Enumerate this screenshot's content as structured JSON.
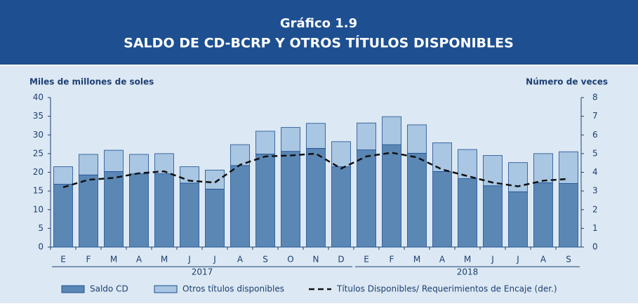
{
  "chart_data": {
    "type": "bar",
    "title": "Gráfico 1.9",
    "subtitle": "SALDO DE CD-BCRP Y OTROS TÍTULOS DISPONIBLES",
    "y_label": "Miles de millones de soles",
    "y2_label": "Número de veces",
    "categories": [
      "E",
      "F",
      "M",
      "A",
      "M",
      "J",
      "J",
      "A",
      "S",
      "O",
      "N",
      "D",
      "E",
      "F",
      "M",
      "A",
      "M",
      "J",
      "J",
      "A",
      "S"
    ],
    "year_groups": [
      {
        "label": "2017",
        "count": 12
      },
      {
        "label": "2018",
        "count": 9
      }
    ],
    "series": [
      {
        "name": "Saldo CD",
        "color": "#5b87b5",
        "values": [
          16.8,
          19.3,
          20.2,
          19.6,
          19.6,
          17.1,
          15.5,
          21.8,
          24.9,
          25.6,
          26.4,
          21.5,
          26.0,
          27.4,
          25.1,
          20.2,
          18.3,
          16.4,
          14.8,
          17.2,
          17.0
        ]
      },
      {
        "name": "Otros títulos disponibles",
        "color": "#a9c6e2",
        "values": [
          4.7,
          5.5,
          5.7,
          5.2,
          5.4,
          4.4,
          5.1,
          5.6,
          6.1,
          6.4,
          6.7,
          6.7,
          7.2,
          7.5,
          7.6,
          7.7,
          7.8,
          8.1,
          7.8,
          7.8,
          8.5
        ]
      },
      {
        "name": "Títulos Disponibles/ Requerimientos de Encaje (der.)",
        "color": "#111111",
        "axis": "y2",
        "dashed": true,
        "values": [
          3.2,
          3.6,
          3.7,
          3.95,
          4.05,
          3.55,
          3.45,
          4.4,
          4.85,
          4.9,
          5.0,
          4.2,
          4.85,
          5.05,
          4.8,
          4.15,
          3.8,
          3.45,
          3.25,
          3.55,
          3.65
        ]
      }
    ],
    "ylim": [
      0,
      40
    ],
    "yticks": [
      0,
      5,
      10,
      15,
      20,
      25,
      30,
      35,
      40
    ],
    "y2lim": [
      0,
      8
    ],
    "y2ticks": [
      0,
      1,
      2,
      3,
      4,
      5,
      6,
      7,
      8
    ]
  }
}
